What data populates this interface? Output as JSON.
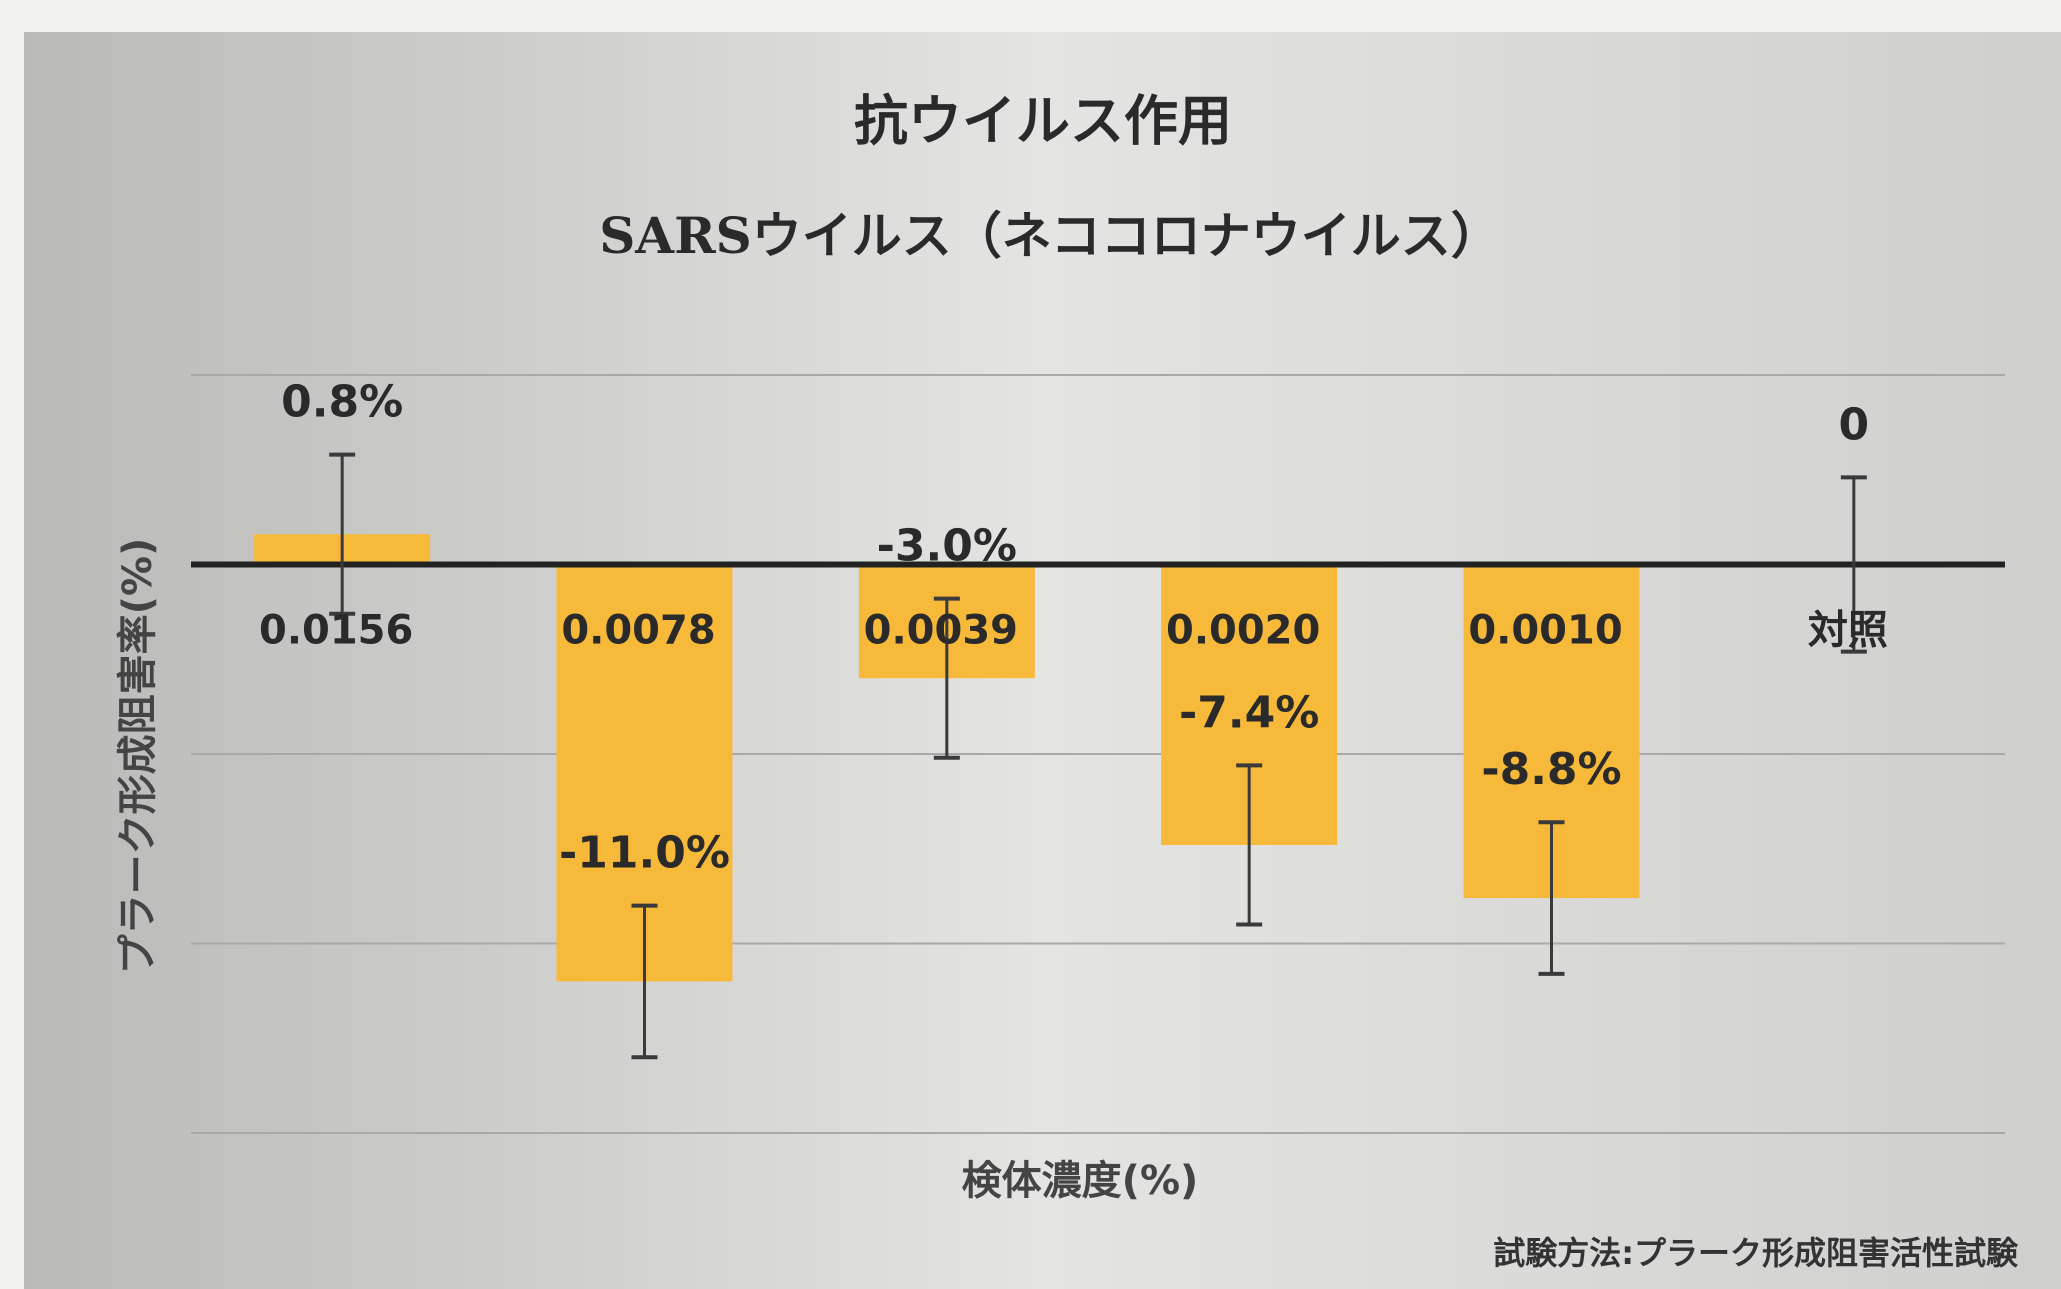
{
  "chart_data": {
    "type": "bar",
    "title": "抗ウイルス作用",
    "subtitle": "SARSウイルス（ネココロナウイルス）",
    "x_label": "検体濃度(%)",
    "y_label": "プラーク形成阻害率(%)",
    "note": "試験方法:プラーク形成阻害活性試験",
    "categories": [
      "0.0156",
      "0.0078",
      "0.0039",
      "0.0020",
      "0.0010",
      "対照"
    ],
    "values": [
      0.8,
      -11.0,
      -3.0,
      -7.4,
      -8.8,
      0
    ],
    "value_labels": [
      "0.8%",
      "-11.0%",
      "-3.0%",
      "-7.4%",
      "-8.8%",
      "0"
    ],
    "errors": [
      2.1,
      2.0,
      2.1,
      2.1,
      2.0,
      2.3
    ],
    "color": "#f6b93a",
    "error_color": "#3a3a3a",
    "ylim": [
      -15,
      5
    ],
    "yticks": [
      -15,
      -10,
      -5,
      0,
      5
    ],
    "grid": true
  }
}
